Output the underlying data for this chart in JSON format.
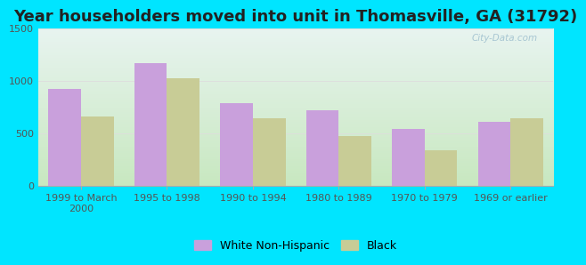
{
  "title": "Year householders moved into unit in Thomasville, GA (31792)",
  "categories": [
    "1999 to March\n2000",
    "1995 to 1998",
    "1990 to 1994",
    "1980 to 1989",
    "1970 to 1979",
    "1969 or earlier"
  ],
  "white_values": [
    930,
    1170,
    790,
    725,
    545,
    615
  ],
  "black_values": [
    665,
    1025,
    645,
    480,
    345,
    650
  ],
  "white_color": "#c9a0dc",
  "black_color": "#c8cc96",
  "background_outer": "#00e5ff",
  "gradient_bottom": "#c8e8c0",
  "gradient_top": "#e8f4f0",
  "ylim": [
    0,
    1500
  ],
  "yticks": [
    0,
    500,
    1000,
    1500
  ],
  "bar_width": 0.38,
  "title_fontsize": 13,
  "tick_fontsize": 8,
  "legend_fontsize": 9,
  "watermark": "City-Data.com"
}
